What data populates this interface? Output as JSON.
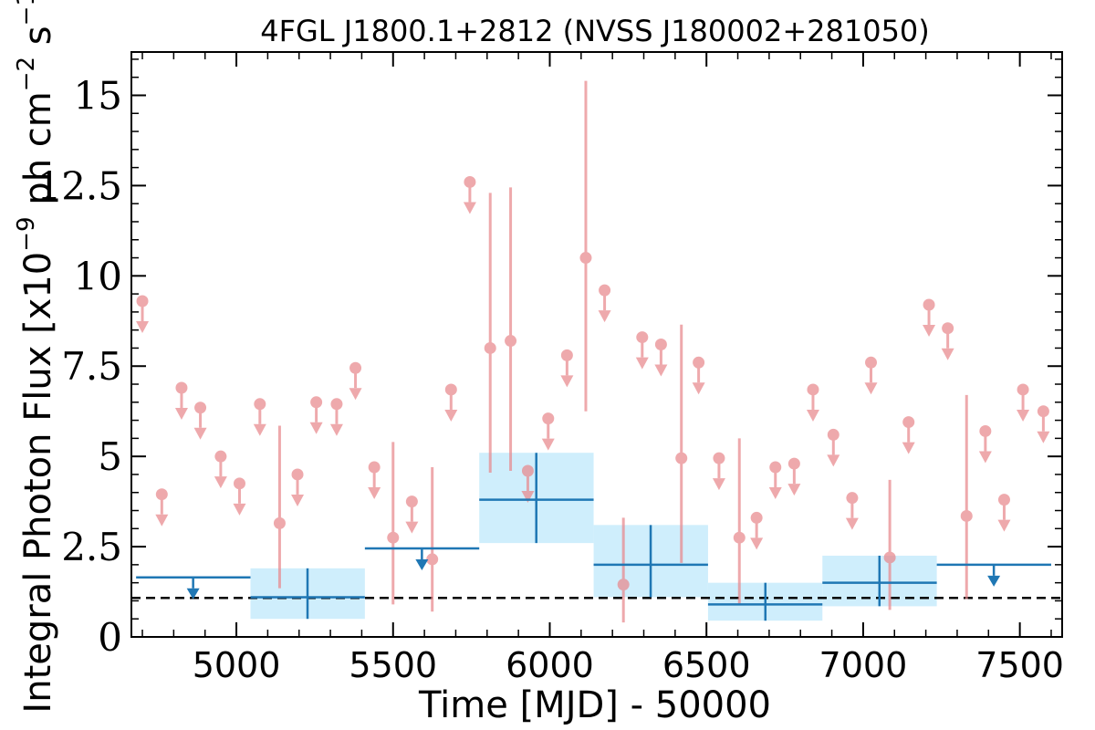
{
  "chart_data": {
    "type": "scatter",
    "title": "4FGL J1800.1+2812 (NVSS J180002+281050)",
    "xlabel": "Time [MJD] - 50000",
    "ylabel": "Integral Photon Flux [x10",
    "ylabel_exp": "−9",
    "ylabel_mid": " ph cm",
    "ylabel_exp2": "−2",
    "ylabel_mid2": " s",
    "ylabel_exp3": "−1",
    "ylabel_end": "]",
    "xlim": [
      4665,
      7635
    ],
    "ylim": [
      0,
      16.2
    ],
    "xticks": [
      5000,
      5500,
      6000,
      6500,
      7000,
      7500
    ],
    "xtick_labels": [
      "5000",
      "5500",
      "6000",
      "6500",
      "7000",
      "7500"
    ],
    "yticks": [
      0,
      2.5,
      5,
      7.5,
      10,
      12.5,
      15
    ],
    "ytick_labels": [
      "0",
      "2.5",
      "5",
      "7.5",
      "10",
      "12.5",
      "15"
    ],
    "reference_line": 1.08,
    "colors": {
      "short_bins": "#e8888d",
      "long_bins": "#1f77b4",
      "band": "#cfeefc",
      "reference": "#000000"
    },
    "series": [
      {
        "bin": "short",
        "detections": [
          {
            "x": 5138,
            "y": 3.15,
            "lo": 1.35,
            "hi": 5.85
          },
          {
            "x": 5500,
            "y": 2.75,
            "lo": 0.9,
            "hi": 5.4
          },
          {
            "x": 5625,
            "y": 2.15,
            "lo": 0.7,
            "hi": 4.7
          },
          {
            "x": 5810,
            "y": 8.0,
            "lo": 4.55,
            "hi": 12.3
          },
          {
            "x": 5875,
            "y": 8.2,
            "lo": 4.6,
            "hi": 12.45
          },
          {
            "x": 6115,
            "y": 10.5,
            "lo": 6.25,
            "hi": 15.4
          },
          {
            "x": 6235,
            "y": 1.45,
            "lo": 0.4,
            "hi": 3.3
          },
          {
            "x": 6420,
            "y": 4.95,
            "lo": 2.05,
            "hi": 8.65
          },
          {
            "x": 6605,
            "y": 2.75,
            "lo": 0.9,
            "hi": 5.5
          },
          {
            "x": 7085,
            "y": 2.2,
            "lo": 0.75,
            "hi": 4.35
          },
          {
            "x": 7330,
            "y": 3.35,
            "lo": 1.05,
            "hi": 6.7
          }
        ],
        "upper_limits": [
          {
            "x": 4700,
            "y": 9.3
          },
          {
            "x": 4762,
            "y": 3.95
          },
          {
            "x": 4825,
            "y": 6.9
          },
          {
            "x": 4885,
            "y": 6.35
          },
          {
            "x": 4950,
            "y": 5.0
          },
          {
            "x": 5010,
            "y": 4.25
          },
          {
            "x": 5075,
            "y": 6.45
          },
          {
            "x": 5195,
            "y": 4.5
          },
          {
            "x": 5255,
            "y": 6.5
          },
          {
            "x": 5320,
            "y": 6.45
          },
          {
            "x": 5380,
            "y": 7.45
          },
          {
            "x": 5440,
            "y": 4.7
          },
          {
            "x": 5560,
            "y": 3.75
          },
          {
            "x": 5685,
            "y": 6.85
          },
          {
            "x": 5745,
            "y": 12.6
          },
          {
            "x": 5930,
            "y": 4.6
          },
          {
            "x": 5995,
            "y": 6.05
          },
          {
            "x": 6055,
            "y": 7.8
          },
          {
            "x": 6175,
            "y": 9.6
          },
          {
            "x": 6295,
            "y": 8.3
          },
          {
            "x": 6355,
            "y": 8.1
          },
          {
            "x": 6475,
            "y": 7.6
          },
          {
            "x": 6540,
            "y": 4.95
          },
          {
            "x": 6660,
            "y": 3.3
          },
          {
            "x": 6720,
            "y": 4.7
          },
          {
            "x": 6780,
            "y": 4.8
          },
          {
            "x": 6840,
            "y": 6.85
          },
          {
            "x": 6905,
            "y": 5.6
          },
          {
            "x": 6965,
            "y": 3.85
          },
          {
            "x": 7025,
            "y": 7.6
          },
          {
            "x": 7145,
            "y": 5.95
          },
          {
            "x": 7210,
            "y": 9.2
          },
          {
            "x": 7270,
            "y": 8.55
          },
          {
            "x": 7390,
            "y": 5.7
          },
          {
            "x": 7450,
            "y": 3.8
          },
          {
            "x": 7510,
            "y": 6.85
          },
          {
            "x": 7575,
            "y": 6.25
          }
        ]
      },
      {
        "bin": "long",
        "detections": [
          {
            "x0": 5045,
            "x1": 5410,
            "x": 5227,
            "y": 1.1,
            "lo": 0.5,
            "hi": 1.9
          },
          {
            "x0": 5775,
            "x1": 6140,
            "x": 5957,
            "y": 3.8,
            "lo": 2.6,
            "hi": 5.1
          },
          {
            "x0": 6140,
            "x1": 6505,
            "x": 6322,
            "y": 2.0,
            "lo": 1.1,
            "hi": 3.1
          },
          {
            "x0": 6505,
            "x1": 6870,
            "x": 6688,
            "y": 0.9,
            "lo": 0.45,
            "hi": 1.5
          },
          {
            "x0": 6870,
            "x1": 7235,
            "x": 7052,
            "y": 1.5,
            "lo": 0.85,
            "hi": 2.25
          }
        ],
        "upper_limits": [
          {
            "x0": 4680,
            "x1": 5045,
            "x": 4862,
            "y": 1.65
          },
          {
            "x0": 5410,
            "x1": 5775,
            "x": 5592,
            "y": 2.45
          },
          {
            "x0": 7235,
            "x1": 7600,
            "x": 7417,
            "y": 2.0
          }
        ]
      }
    ]
  }
}
